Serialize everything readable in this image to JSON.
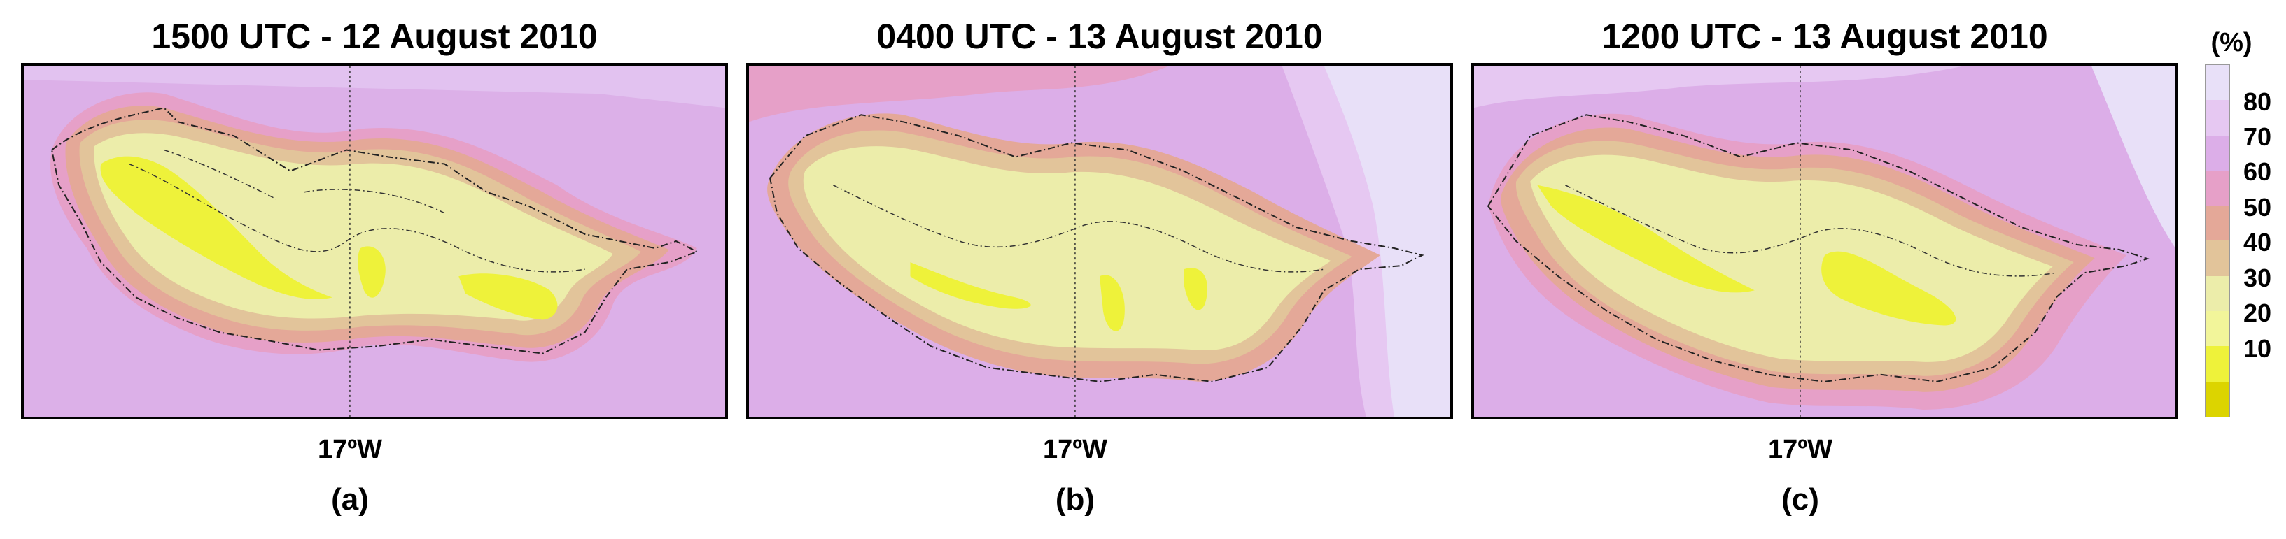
{
  "panels": [
    {
      "title": "1500 UTC - 12 August 2010",
      "lon_label": "17ºW",
      "letter": "(a)"
    },
    {
      "title": "0400 UTC - 13 August 2010",
      "lon_label": "17ºW",
      "letter": "(b)"
    },
    {
      "title": "1200 UTC - 13 August 2010",
      "lon_label": "17ºW",
      "letter": "(c)"
    }
  ],
  "colorbar": {
    "unit": "(%)",
    "ticks": [
      "80",
      "70",
      "60",
      "50",
      "40",
      "30",
      "20",
      "10"
    ],
    "colors": [
      "#e8e0f8",
      "#e6c8f2",
      "#dcaee8",
      "#e6a0c8",
      "#e4a898",
      "#e2c49a",
      "#ecedaa",
      "#f2f59a",
      "#eef23a",
      "#dcd400"
    ]
  }
}
